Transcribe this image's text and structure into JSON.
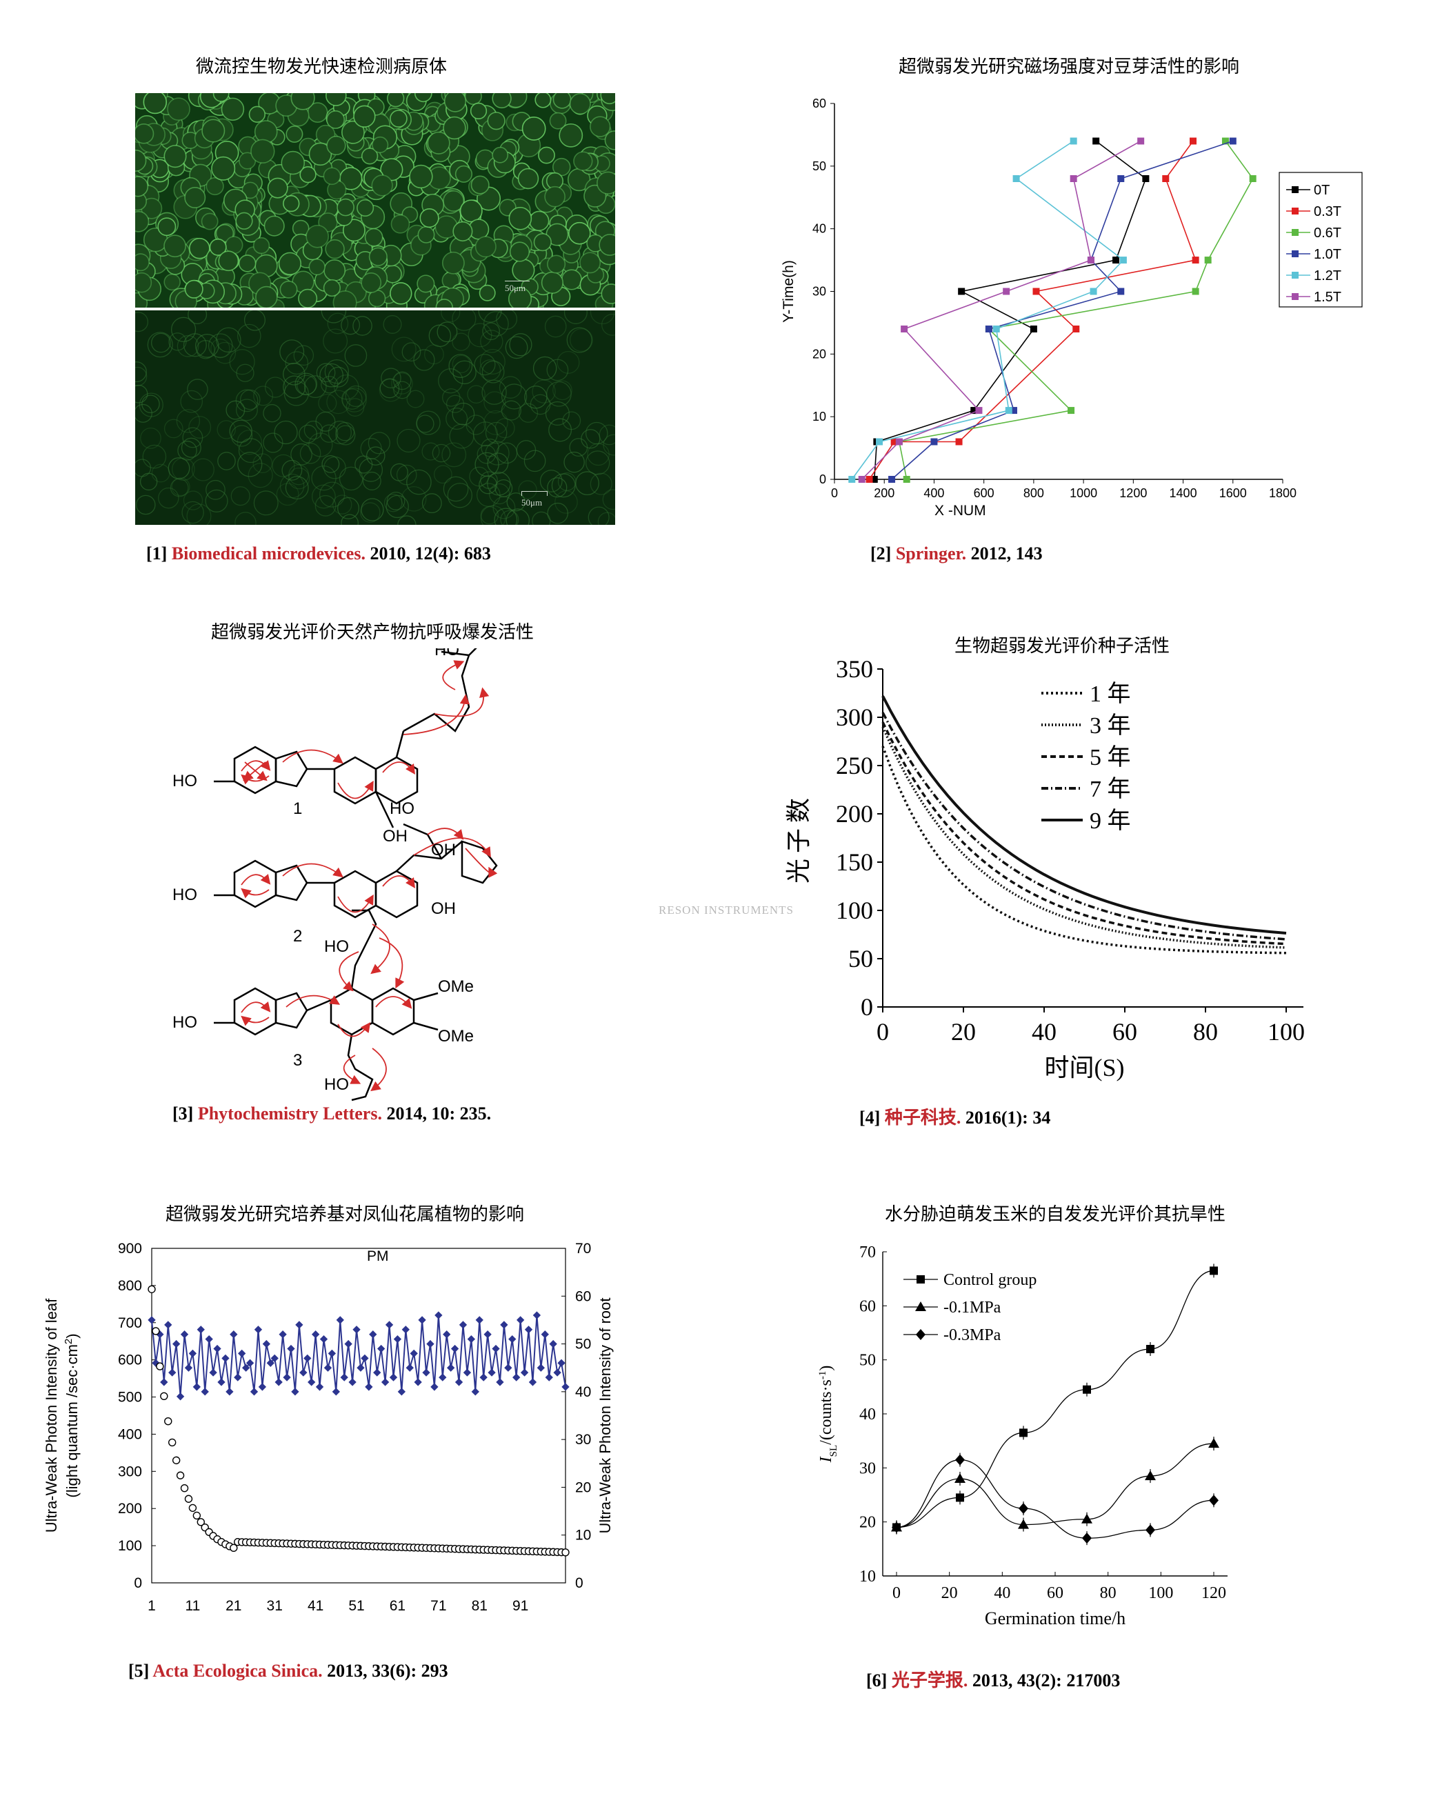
{
  "panel1": {
    "title": "微流控生物发光快速检测病原体",
    "scale_top": "50μm",
    "scale_bottom": "50μm",
    "ref_num": "[1]",
    "ref_journal": "Biomedical microdevices.",
    "ref_tail": "2010, 12(4): 683"
  },
  "panel2": {
    "title": "超微弱发光研究磁场强度对豆芽活性的影响",
    "ref_num": "[2]",
    "ref_journal": "Springer.",
    "ref_tail": "2012, 143"
  },
  "panel3": {
    "title": "超微弱发光评价天然产物抗呼吸爆发活性",
    "ref_num": "[3]",
    "ref_journal": "Phytochemistry Letters.",
    "ref_tail": "2014, 10: 235.",
    "labels": {
      "ho1": "HO",
      "oh1a": "OH",
      "n1": "1",
      "ho2": "HO",
      "oh2a": "OH",
      "oh2b": "OH",
      "ho2b": "HO",
      "n2": "2",
      "ho3": "HO",
      "ho3a": "HO",
      "ho3b": "HO",
      "ome1": "OMe",
      "ome2": "OMe",
      "n3": "3",
      "ho_top": "HO"
    }
  },
  "panel4": {
    "title": "生物超弱发光评价种子活性",
    "ref_num": "[4]",
    "ref_journal": "种子科技.",
    "ref_tail": "2016(1): 34"
  },
  "panel5": {
    "title": "超微弱发光研究培养基对凤仙花属植物的影响",
    "ref_num": "[5]",
    "ref_journal": "Acta Ecologica Sinica.",
    "ref_tail": "2013, 33(6): 293"
  },
  "panel6": {
    "title": "水分胁迫萌发玉米的自发发光评价其抗旱性",
    "ref_num": "[6]",
    "ref_journal": "光子学报.",
    "ref_tail": "2013, 43(2): 217003"
  },
  "watermark": "RESON INSTRUMENTS",
  "chart_data": [
    {
      "id": "magnetic",
      "type": "line",
      "xlabel": "X -NUM",
      "ylabel": "Y-Time(h)",
      "xlim": [
        0,
        1800
      ],
      "ylim": [
        0,
        60
      ],
      "xticks": [
        0,
        200,
        400,
        600,
        800,
        1000,
        1200,
        1400,
        1600,
        1800
      ],
      "yticks": [
        0,
        10,
        20,
        30,
        40,
        50,
        60
      ],
      "legend_position": "right",
      "series": [
        {
          "name": "0T",
          "color": "#000000",
          "x": [
            160,
            170,
            560,
            800,
            510,
            1130,
            1250,
            1050
          ],
          "y": [
            0,
            6,
            11,
            24,
            30,
            35,
            48,
            54
          ]
        },
        {
          "name": "0.3T",
          "color": "#e02020",
          "x": [
            140,
            240,
            500,
            970,
            810,
            1450,
            1330,
            1440
          ],
          "y": [
            0,
            6,
            6,
            24,
            30,
            35,
            48,
            54
          ]
        },
        {
          "name": "0.6T",
          "color": "#5cb841",
          "x": [
            290,
            260,
            950,
            620,
            1450,
            1500,
            1680,
            1570
          ],
          "y": [
            0,
            6,
            11,
            24,
            30,
            35,
            48,
            54
          ]
        },
        {
          "name": "1.0T",
          "color": "#2f3e9e",
          "x": [
            230,
            400,
            720,
            620,
            1150,
            1030,
            1150,
            1600
          ],
          "y": [
            0,
            6,
            11,
            24,
            30,
            35,
            48,
            54
          ]
        },
        {
          "name": "1.2T",
          "color": "#5bc2d6",
          "x": [
            70,
            180,
            700,
            650,
            1040,
            1160,
            730,
            960
          ],
          "y": [
            0,
            6,
            11,
            24,
            30,
            35,
            48,
            54
          ]
        },
        {
          "name": "1.5T",
          "color": "#a44ea8",
          "x": [
            110,
            260,
            580,
            280,
            690,
            1030,
            960,
            1230
          ],
          "y": [
            0,
            6,
            11,
            24,
            30,
            35,
            48,
            54
          ]
        }
      ]
    },
    {
      "id": "seed",
      "type": "line",
      "xlabel": "时间(S)",
      "ylabel": "光子数",
      "xlim": [
        0,
        100
      ],
      "ylim": [
        0,
        350
      ],
      "xticks": [
        0,
        20,
        40,
        60,
        80,
        100
      ],
      "yticks": [
        0,
        50,
        100,
        150,
        200,
        250,
        300,
        350
      ],
      "legend_position": "top-right",
      "series": [
        {
          "name": "1 年",
          "a": 270,
          "b": 55,
          "k": 0.055
        },
        {
          "name": "3 年",
          "a": 290,
          "b": 58,
          "k": 0.042
        },
        {
          "name": "5 年",
          "a": 295,
          "b": 60,
          "k": 0.038
        },
        {
          "name": "7 年",
          "a": 305,
          "b": 62,
          "k": 0.034
        },
        {
          "name": "9 年",
          "a": 322,
          "b": 66,
          "k": 0.032
        }
      ]
    },
    {
      "id": "impatiens",
      "type": "scatter",
      "annotation": "PM",
      "ylabel_left": "Ultra-Weak Photon Intensity of leaf (light quantum /sec·cm²)",
      "ylabel_left_1": "Ultra-Weak Photon Intensity of leaf",
      "ylabel_left_2": "(light quantum /sec·cm",
      "ylabel_left_sup": "2",
      "ylabel_left_3": ")",
      "ylabel_right": "Ultra-Weak Photon Intensity of root",
      "xlim": [
        1,
        102
      ],
      "ylim_left": [
        0,
        900
      ],
      "ylim_right": [
        0,
        70
      ],
      "xticks": [
        1,
        11,
        21,
        31,
        41,
        51,
        61,
        71,
        81,
        91
      ],
      "yticks_left": [
        0,
        100,
        200,
        300,
        400,
        500,
        600,
        700,
        800,
        900
      ],
      "yticks_right": [
        0,
        10,
        20,
        30,
        40,
        50,
        60,
        70
      ],
      "leaf_model": {
        "a": 720,
        "k": 0.17,
        "floor": 70
      },
      "root_values": [
        55,
        46,
        52,
        42,
        54,
        44,
        50,
        39,
        52,
        45,
        48,
        41,
        53,
        40,
        51,
        44,
        49,
        42,
        47,
        40,
        52,
        43,
        48,
        45,
        46,
        40,
        53,
        41,
        50,
        46,
        47,
        42,
        52,
        43,
        49,
        40,
        54,
        44,
        47,
        42,
        52,
        41,
        51,
        45,
        48,
        40,
        55,
        43,
        50,
        42,
        53,
        45,
        47,
        41,
        52,
        44,
        49,
        42,
        54,
        43,
        51,
        40,
        53,
        45,
        48,
        42,
        55,
        44,
        50,
        41,
        56,
        43,
        52,
        45,
        49,
        42,
        54,
        44,
        51,
        40,
        55,
        43,
        52,
        44,
        49,
        42,
        54,
        45,
        51,
        43,
        55,
        44,
        53,
        42,
        56,
        45,
        52,
        43,
        50,
        44,
        46,
        41
      ]
    },
    {
      "id": "maize",
      "type": "line",
      "xlabel": "Germination time/h",
      "ylabel": "I_SL/(counts·s⁻¹)",
      "ylabel_main": "I",
      "ylabel_sub": "SL",
      "ylabel_tail": "/(counts·s",
      "ylabel_sup": "-1",
      "ylabel_end": ")",
      "xlim": [
        0,
        120
      ],
      "ylim": [
        10,
        70
      ],
      "xticks": [
        0,
        20,
        40,
        60,
        80,
        100,
        120
      ],
      "yticks": [
        10,
        20,
        30,
        40,
        50,
        60,
        70
      ],
      "legend_position": "top-left",
      "series": [
        {
          "name": "Control group",
          "marker": "square",
          "x": [
            0,
            24,
            48,
            72,
            96,
            120
          ],
          "y": [
            19,
            24.5,
            36.5,
            44.5,
            52,
            66.5
          ]
        },
        {
          "name": "-0.1MPa",
          "marker": "triangle",
          "x": [
            0,
            24,
            48,
            72,
            96,
            120
          ],
          "y": [
            19,
            28,
            19.5,
            20.5,
            28.5,
            34.5
          ]
        },
        {
          "name": "-0.3MPa",
          "marker": "diamond",
          "x": [
            0,
            24,
            48,
            72,
            96,
            120
          ],
          "y": [
            19,
            31.5,
            22.5,
            17,
            18.5,
            24
          ]
        }
      ]
    }
  ]
}
